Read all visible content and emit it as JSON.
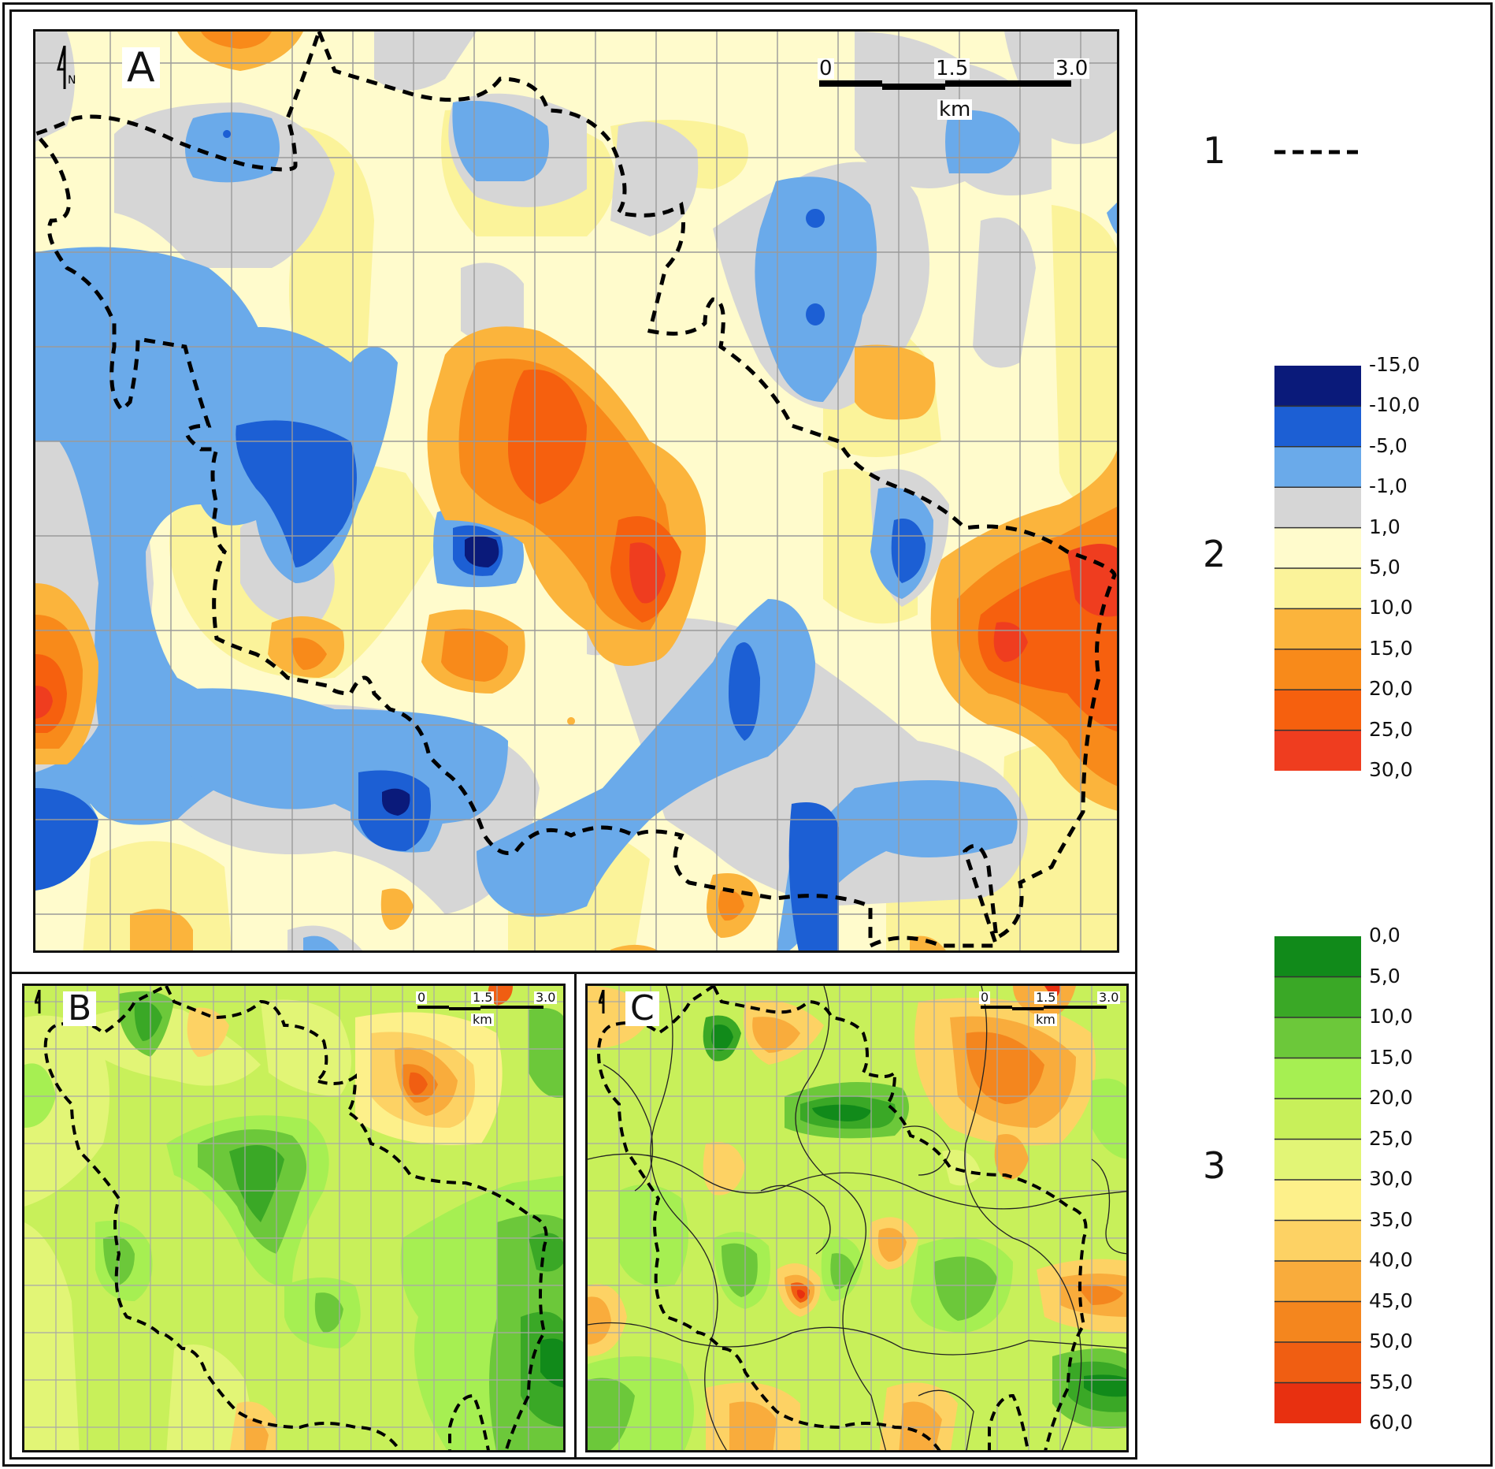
{
  "panels": {
    "A": {
      "letter": "A"
    },
    "B": {
      "letter": "B"
    },
    "C": {
      "letter": "C"
    }
  },
  "scalebar": {
    "t0": "0",
    "t1": "1.5",
    "t2": "3.0",
    "unit": "km"
  },
  "north_arrow": {
    "letter": "N"
  },
  "legend": {
    "item1": {
      "number": "1",
      "symbol": "dashed-boundary-line"
    },
    "item2": {
      "number": "2",
      "ticks": [
        "-15,0",
        "-10,0",
        "-5,0",
        "-1,0",
        "1,0",
        "5,0",
        "10,0",
        "15,0",
        "20,0",
        "25,0",
        "30,0"
      ],
      "colors": [
        "#0a1a7a",
        "#1c5fd4",
        "#6aaaea",
        "#d6d6d6",
        "#fffbcc",
        "#fbf39a",
        "#fbb43c",
        "#f88a1a",
        "#f6600e",
        "#ef3d1f"
      ]
    },
    "item3": {
      "number": "3",
      "ticks": [
        "0,0",
        "5,0",
        "10,0",
        "15,0",
        "20,0",
        "25,0",
        "30,0",
        "35,0",
        "40,0",
        "45,0",
        "50,0",
        "55,0",
        "60,0"
      ],
      "colors": [
        "#118a1a",
        "#3aa826",
        "#6cc83a",
        "#a6ef52",
        "#c8f05a",
        "#e2f576",
        "#fdf08a",
        "#fdd264",
        "#f9ac3c",
        "#f4861e",
        "#f05e12",
        "#e83010"
      ]
    }
  }
}
